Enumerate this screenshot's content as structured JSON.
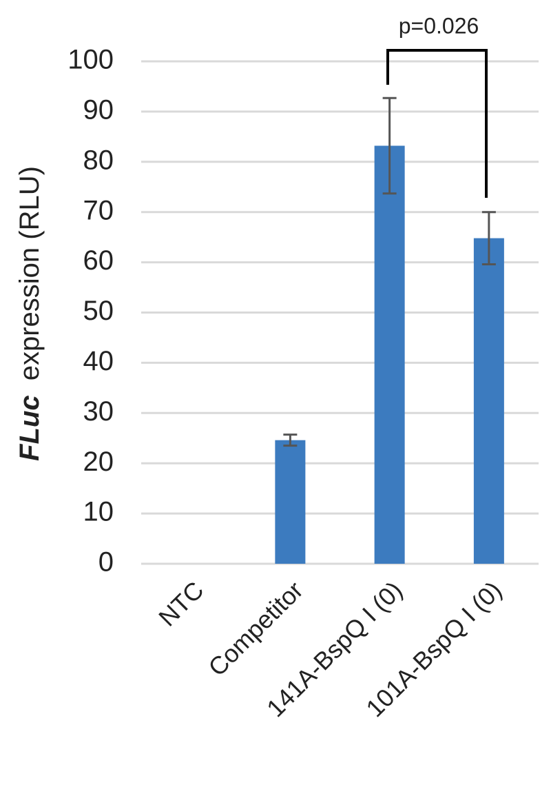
{
  "chart_data": {
    "type": "bar",
    "y_label": {
      "emphasis": "FLuc",
      "rest": "expression (RLU)"
    },
    "categories": [
      "NTC",
      "Competitor",
      "141A-BspQ I (0)",
      "101A-BspQ I (0)"
    ],
    "values": [
      0,
      24.6,
      83.2,
      64.8
    ],
    "errors": [
      null,
      1.1,
      9.5,
      5.2
    ],
    "color": "#3c7bbf",
    "error_color": "#555555",
    "ylim": [
      0,
      100
    ],
    "yticks": [
      0,
      10,
      20,
      30,
      40,
      50,
      60,
      70,
      80,
      90,
      100
    ],
    "grid": true,
    "annotation": "p=0.026"
  }
}
